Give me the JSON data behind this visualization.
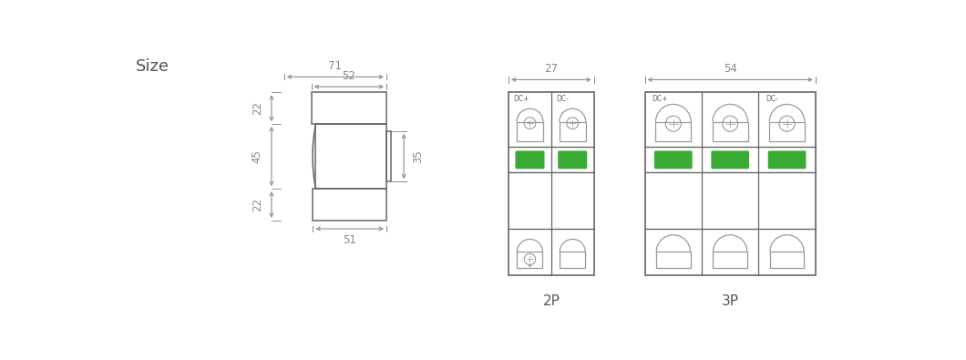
{
  "bg_color": "#ffffff",
  "line_color": "#999999",
  "dark_line": "#666666",
  "green_color": "#3aaa35",
  "text_color": "#555555",
  "dim_color": "#888888",
  "title": "Size",
  "label_2p": "2P",
  "label_3p": "3P",
  "dim_71": "71",
  "dim_52": "52",
  "dim_22a": "22",
  "dim_45": "45",
  "dim_22b": "22",
  "dim_35": "35",
  "dim_51": "51",
  "dim_27": "27",
  "dim_54": "54"
}
